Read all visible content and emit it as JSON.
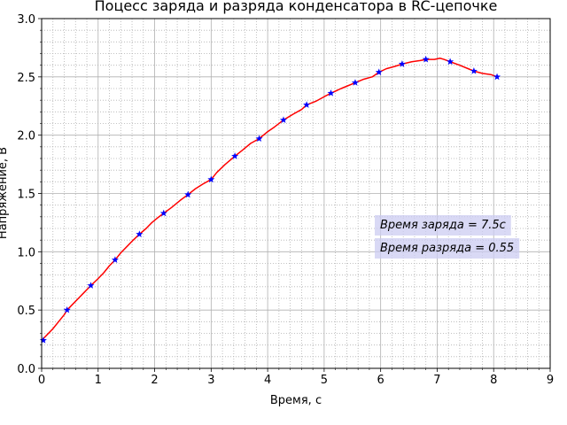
{
  "chart_data": {
    "type": "line",
    "title": "Поцесс заряда и разряда конденсатора в RC-цепочке",
    "xlabel": "Время, с",
    "ylabel": "Напряжение, В",
    "xlim": [
      0,
      9
    ],
    "ylim": [
      0,
      3
    ],
    "xticks": [
      "0",
      "1",
      "2",
      "3",
      "4",
      "5",
      "6",
      "7",
      "8",
      "9"
    ],
    "yticks": [
      "0.0",
      "0.5",
      "1.0",
      "1.5",
      "2.0",
      "2.5",
      "3.0"
    ],
    "grid": true,
    "minor_grid": true,
    "colors": {
      "line": "#ff0000",
      "markers": "#0000ff",
      "box": "#ccccf2"
    },
    "annotations": [
      "Время заряда = 7.5с",
      "Время разряда = 0.55"
    ],
    "series": [
      {
        "line": [
          [
            0.0,
            0.24
          ],
          [
            0.1,
            0.29
          ],
          [
            0.2,
            0.34
          ],
          [
            0.3,
            0.4
          ],
          [
            0.4,
            0.46
          ],
          [
            0.45,
            0.5
          ],
          [
            0.55,
            0.55
          ],
          [
            0.65,
            0.6
          ],
          [
            0.75,
            0.65
          ],
          [
            0.87,
            0.71
          ],
          [
            1.0,
            0.77
          ],
          [
            1.1,
            0.82
          ],
          [
            1.2,
            0.88
          ],
          [
            1.3,
            0.93
          ],
          [
            1.4,
            0.99
          ],
          [
            1.5,
            1.04
          ],
          [
            1.6,
            1.09
          ],
          [
            1.73,
            1.15
          ],
          [
            1.85,
            1.2
          ],
          [
            1.95,
            1.25
          ],
          [
            2.05,
            1.29
          ],
          [
            2.16,
            1.33
          ],
          [
            2.3,
            1.38
          ],
          [
            2.45,
            1.44
          ],
          [
            2.59,
            1.49
          ],
          [
            2.72,
            1.54
          ],
          [
            2.85,
            1.58
          ],
          [
            3.0,
            1.62
          ],
          [
            3.1,
            1.68
          ],
          [
            3.25,
            1.75
          ],
          [
            3.42,
            1.82
          ],
          [
            3.55,
            1.87
          ],
          [
            3.7,
            1.93
          ],
          [
            3.85,
            1.97
          ],
          [
            4.0,
            2.03
          ],
          [
            4.12,
            2.07
          ],
          [
            4.28,
            2.13
          ],
          [
            4.45,
            2.18
          ],
          [
            4.6,
            2.22
          ],
          [
            4.69,
            2.26
          ],
          [
            4.85,
            2.29
          ],
          [
            5.0,
            2.33
          ],
          [
            5.12,
            2.36
          ],
          [
            5.3,
            2.4
          ],
          [
            5.4,
            2.42
          ],
          [
            5.55,
            2.45
          ],
          [
            5.7,
            2.48
          ],
          [
            5.85,
            2.5
          ],
          [
            5.97,
            2.54
          ],
          [
            6.1,
            2.57
          ],
          [
            6.25,
            2.59
          ],
          [
            6.38,
            2.61
          ],
          [
            6.55,
            2.63
          ],
          [
            6.7,
            2.64
          ],
          [
            6.8,
            2.65
          ],
          [
            6.95,
            2.65
          ],
          [
            7.05,
            2.66
          ],
          [
            7.12,
            2.65
          ],
          [
            7.23,
            2.63
          ],
          [
            7.4,
            2.6
          ],
          [
            7.55,
            2.57
          ],
          [
            7.65,
            2.55
          ],
          [
            7.8,
            2.53
          ],
          [
            7.95,
            2.52
          ],
          [
            8.06,
            2.5
          ]
        ],
        "markers": [
          [
            0.03,
            0.24
          ],
          [
            0.45,
            0.5
          ],
          [
            0.87,
            0.71
          ],
          [
            1.3,
            0.93
          ],
          [
            1.73,
            1.15
          ],
          [
            2.16,
            1.33
          ],
          [
            2.59,
            1.49
          ],
          [
            3.0,
            1.62
          ],
          [
            3.42,
            1.82
          ],
          [
            3.85,
            1.97
          ],
          [
            4.28,
            2.13
          ],
          [
            4.69,
            2.26
          ],
          [
            5.12,
            2.36
          ],
          [
            5.55,
            2.45
          ],
          [
            5.97,
            2.54
          ],
          [
            6.38,
            2.61
          ],
          [
            6.8,
            2.65
          ],
          [
            7.23,
            2.63
          ],
          [
            7.65,
            2.55
          ],
          [
            8.06,
            2.5
          ]
        ]
      }
    ]
  }
}
